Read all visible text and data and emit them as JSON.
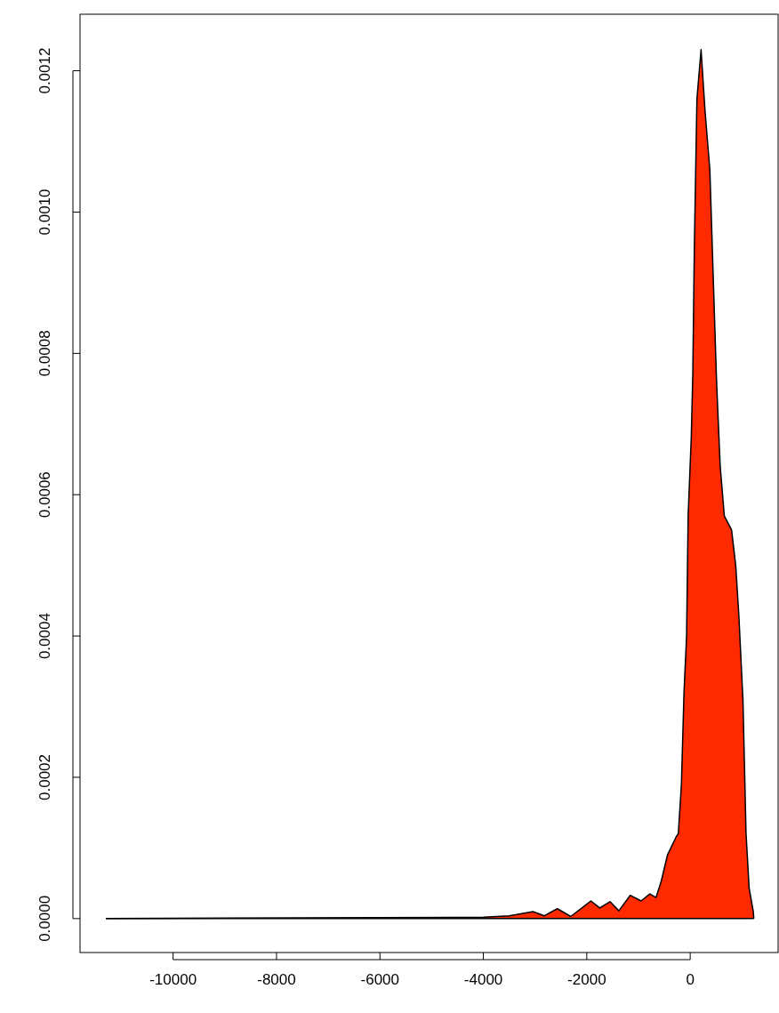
{
  "chart_data": {
    "type": "area",
    "xlim": [
      -11800,
      1700
    ],
    "ylim": [
      -4.8e-05,
      0.00128
    ],
    "xticks": [
      -10000,
      -8000,
      -6000,
      -4000,
      -2000,
      0
    ],
    "yticks": [
      {
        "value": 0,
        "label": "0.0000"
      },
      {
        "value": 0.0002,
        "label": "0.0002"
      },
      {
        "value": 0.0004,
        "label": "0.0004"
      },
      {
        "value": 0.0006,
        "label": "0.0006"
      },
      {
        "value": 0.0008,
        "label": "0.0008"
      },
      {
        "value": 0.001,
        "label": "0.0010"
      },
      {
        "value": 0.0012,
        "label": "0.0012"
      }
    ],
    "x": [
      -11300,
      -4000,
      -3500,
      -3040,
      -2820,
      -2570,
      -2310,
      -1920,
      -1750,
      -1550,
      -1380,
      -1160,
      -950,
      -780,
      -660,
      -560,
      -440,
      -270,
      -230,
      -170,
      -120,
      -70,
      -40,
      20,
      50,
      80,
      130,
      210,
      290,
      380,
      440,
      510,
      580,
      660,
      800,
      880,
      940,
      1020,
      1080,
      1140,
      1220,
      1230
    ],
    "series": [
      {
        "color": "#ff2a00",
        "values": [
          0,
          2e-06,
          4e-06,
          1e-05,
          4e-06,
          1.4e-05,
          3e-06,
          2.5e-05,
          1.5e-05,
          2.4e-05,
          1.1e-05,
          3.3e-05,
          2.5e-05,
          3.5e-05,
          3e-05,
          5.3e-05,
          9e-05,
          0.000116,
          0.00012,
          0.00019,
          0.00032,
          0.0004,
          0.00057,
          0.00068,
          0.00077,
          0.00095,
          0.00116,
          0.00123,
          0.00114,
          0.00106,
          0.00092,
          0.00076,
          0.00064,
          0.00057,
          0.00055,
          0.0005,
          0.00043,
          0.00031,
          0.00012,
          4.3e-05,
          1e-05,
          0
        ]
      }
    ]
  }
}
